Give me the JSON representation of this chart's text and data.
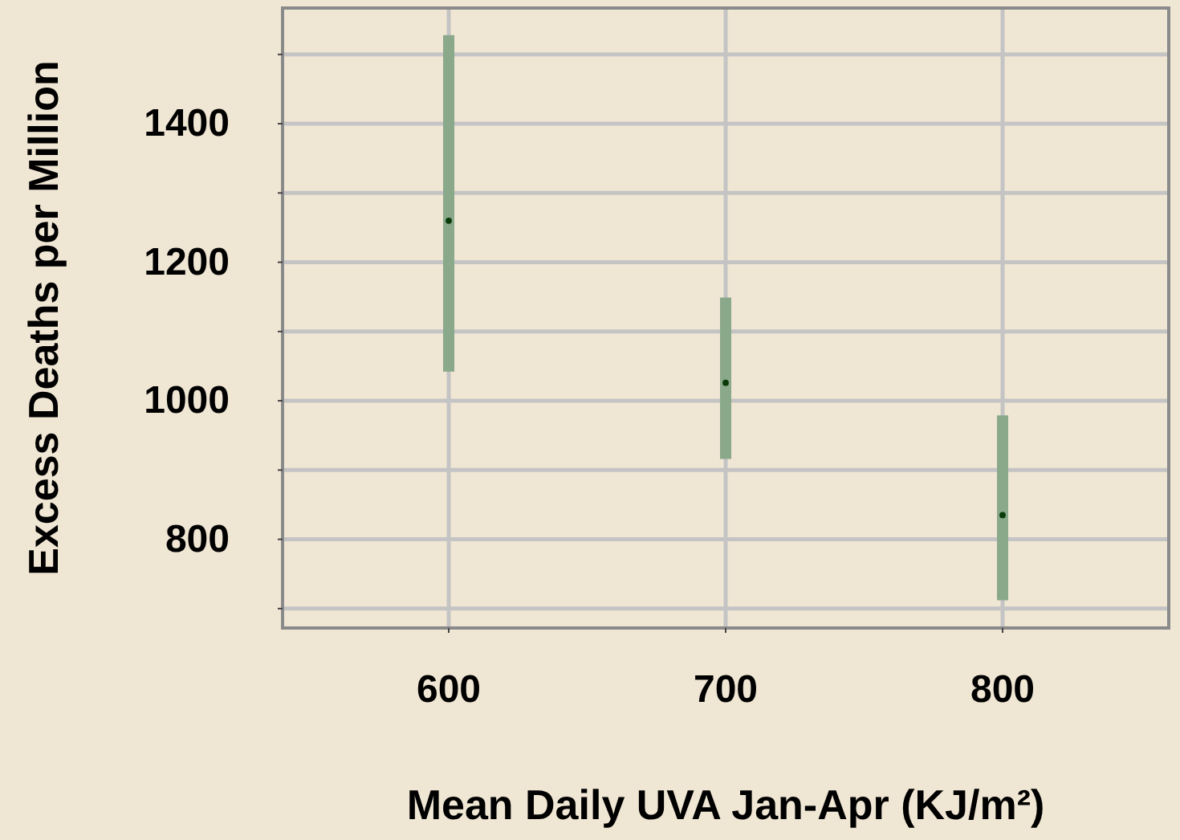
{
  "chart_data": {
    "type": "scatter",
    "xlabel": "Mean Daily UVA Jan-Apr (KJ/m²)",
    "ylabel": "Excess Deaths per Million",
    "x": [
      600,
      700,
      800
    ],
    "values": [
      1260,
      1026,
      835
    ],
    "color": "#0a3a0a",
    "errors": [
      [
        1042,
        1528
      ],
      [
        916,
        1149
      ],
      [
        712,
        979
      ]
    ],
    "xlim": [
      540,
      860
    ],
    "ylim": [
      672,
      1567
    ],
    "xticks": [
      600,
      700,
      800
    ],
    "yticks": [
      {
        "value": 700,
        "label": null
      },
      800,
      {
        "value": 900,
        "label": null
      },
      1000,
      {
        "value": 1100,
        "label": null
      },
      1200,
      {
        "value": 1300,
        "label": null
      },
      1400,
      {
        "value": 1500,
        "label": null
      }
    ],
    "grid": true,
    "marker": "circle"
  }
}
